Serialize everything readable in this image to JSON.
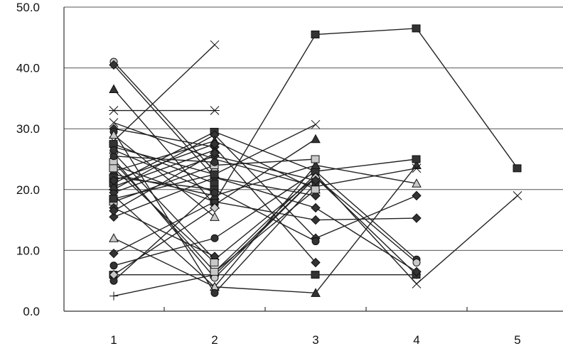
{
  "chart_data": {
    "type": "line",
    "title": "",
    "xlabel": "",
    "ylabel": "",
    "categories": [
      "1",
      "2",
      "3",
      "4",
      "5"
    ],
    "y_tick_labels": [
      "0.0",
      "10.0",
      "20.0",
      "30.0",
      "40.0",
      "50.0"
    ],
    "ylim": [
      0,
      50
    ],
    "grid": "horizontal",
    "legend": "none",
    "colors": {
      "line": "#222222",
      "grid": "#555555",
      "dark_marker": "#333333",
      "light_marker": "#c8c8c8"
    },
    "series": [
      {
        "marker": "square",
        "values": [
          24.0,
          18.0,
          45.5,
          46.5,
          23.5
        ]
      },
      {
        "marker": "triangle",
        "values": [
          19.0,
          4.0,
          3.0,
          24.0,
          null
        ]
      },
      {
        "marker": "x",
        "values": [
          null,
          6.5,
          22.5,
          4.5,
          19.0
        ]
      },
      {
        "marker": "x",
        "values": [
          28.0,
          43.8,
          null,
          null,
          null
        ]
      },
      {
        "marker": "star",
        "values": [
          33.0,
          33.0,
          null,
          null,
          null
        ]
      },
      {
        "marker": "x",
        "values": [
          27.0,
          22.5,
          30.7,
          null,
          null
        ]
      },
      {
        "marker": "triangle",
        "values": [
          36.5,
          17.5,
          28.3,
          null,
          null
        ]
      },
      {
        "marker": "circle",
        "values": [
          41.0,
          23.0,
          null,
          null,
          null
        ]
      },
      {
        "marker": "diamond",
        "values": [
          40.5,
          22.0,
          19.0,
          null,
          null
        ]
      },
      {
        "marker": "plus",
        "values": [
          2.5,
          6.0,
          22.0,
          6.0,
          null
        ]
      },
      {
        "marker": "diamond",
        "values": [
          9.5,
          18.0,
          15.0,
          15.3,
          null
        ]
      },
      {
        "marker": "triangle",
        "values": [
          12.0,
          4.0,
          24.0,
          21.0,
          null
        ]
      },
      {
        "marker": "square",
        "values": [
          6.0,
          6.0,
          6.0,
          6.0,
          null
        ]
      },
      {
        "marker": "circle",
        "values": [
          7.5,
          12.0,
          23.0,
          8.5,
          null
        ]
      },
      {
        "marker": "square",
        "values": [
          21.0,
          29.5,
          23.0,
          25.0,
          null
        ]
      },
      {
        "marker": "circle",
        "values": [
          25.0,
          5.5,
          22.0,
          8.0,
          null
        ]
      },
      {
        "marker": "diamond",
        "values": [
          30.0,
          27.0,
          8.0,
          null,
          null
        ]
      },
      {
        "marker": "x",
        "values": [
          31.0,
          25.0,
          20.5,
          23.5,
          null
        ]
      },
      {
        "marker": "diamond",
        "values": [
          15.5,
          22.0,
          17.0,
          6.5,
          null
        ]
      },
      {
        "marker": "diamond",
        "values": [
          26.0,
          8.5,
          22.0,
          null,
          null
        ]
      },
      {
        "marker": "triangle",
        "values": [
          22.5,
          19.0,
          24.0,
          null,
          null
        ]
      },
      {
        "marker": "diamond",
        "values": [
          20.0,
          29.0,
          12.0,
          19.0,
          null
        ]
      },
      {
        "marker": "circle",
        "values": [
          5.0,
          20.0,
          11.5,
          null,
          null
        ]
      },
      {
        "marker": "square",
        "values": [
          18.0,
          24.0,
          25.0,
          null,
          null
        ]
      },
      {
        "marker": "circle",
        "values": [
          29.5,
          3.0,
          21.0,
          null,
          null
        ]
      },
      {
        "marker": "triangle",
        "values": [
          23.0,
          28.0,
          20.0,
          null,
          null
        ]
      },
      {
        "marker": "diamond",
        "values": [
          19.5,
          25.5,
          21.5,
          null,
          null
        ]
      },
      {
        "marker": "square",
        "values": [
          24.5,
          6.5,
          20.0,
          null,
          null
        ]
      },
      {
        "marker": "diamond",
        "values": [
          17.0,
          9.0,
          null,
          null,
          null
        ]
      },
      {
        "marker": "square",
        "values": [
          27.5,
          21.0,
          null,
          null,
          null
        ]
      },
      {
        "marker": "triangle",
        "values": [
          20.5,
          26.5,
          null,
          null,
          null
        ]
      },
      {
        "marker": "diamond",
        "values": [
          6.0,
          17.0,
          null,
          null,
          null
        ]
      },
      {
        "marker": "square",
        "values": [
          22.0,
          20.0,
          null,
          null,
          null
        ]
      },
      {
        "marker": "circle",
        "values": [
          25.5,
          24.5,
          null,
          null,
          null
        ]
      },
      {
        "marker": "diamond",
        "values": [
          16.5,
          26.0,
          null,
          null,
          null
        ]
      },
      {
        "marker": "triangle",
        "values": [
          29.0,
          15.5,
          null,
          null,
          null
        ]
      },
      {
        "marker": "diamond",
        "values": [
          21.5,
          27.5,
          null,
          null,
          null
        ]
      },
      {
        "marker": "square",
        "values": [
          18.5,
          22.5,
          null,
          null,
          null
        ]
      },
      {
        "marker": "circle",
        "values": [
          26.5,
          19.5,
          null,
          null,
          null
        ]
      },
      {
        "marker": "square",
        "values": [
          23.5,
          8.0,
          null,
          null,
          null
        ]
      }
    ]
  }
}
